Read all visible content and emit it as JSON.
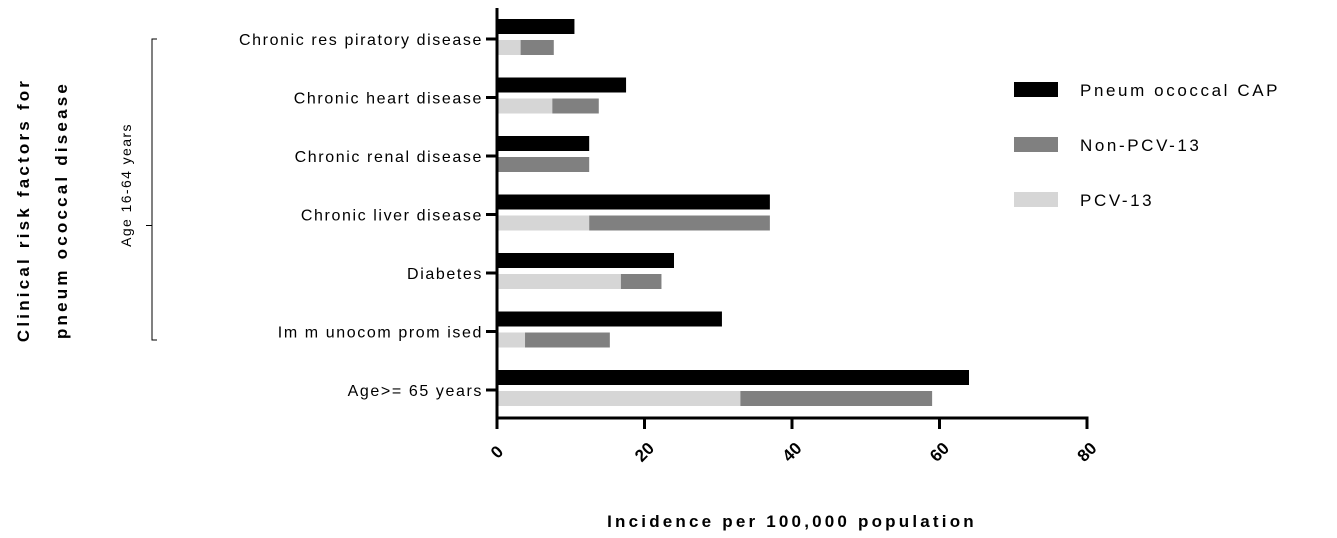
{
  "chart_data": {
    "type": "bar",
    "orientation": "horizontal",
    "stacked_sub_bar": true,
    "categories": [
      "Chronic res piratory disease",
      "Chronic heart disease",
      "Chronic renal disease",
      "Chronic liver disease",
      "Diabetes",
      "Im m unocom prom ised",
      "Age>= 65 years"
    ],
    "series": [
      {
        "name": "Pneum ococcal CAP",
        "color": "#000000",
        "values": [
          10.5,
          17.5,
          12.5,
          37,
          24,
          30.5,
          64
        ]
      },
      {
        "name": "Non-PCV-13",
        "color": "#808080",
        "values": [
          4.5,
          6.3,
          12.5,
          24.5,
          5.5,
          11.5,
          26
        ]
      },
      {
        "name": "PCV-13",
        "color": "#d6d6d6",
        "values": [
          3.2,
          7.5,
          0,
          12.5,
          16.8,
          3.8,
          33
        ]
      }
    ],
    "x_ticks": [
      "0",
      "20",
      "40",
      "60",
      "80"
    ],
    "xlim": [
      0,
      80
    ],
    "xlabel": "Incidence per 100,000 population",
    "ylabel_lines": [
      "Clinical risk factors for",
      "pneum ococcal disease"
    ],
    "bracket_label": "Age 16-64 years",
    "grid": false,
    "legend_position": "right"
  }
}
